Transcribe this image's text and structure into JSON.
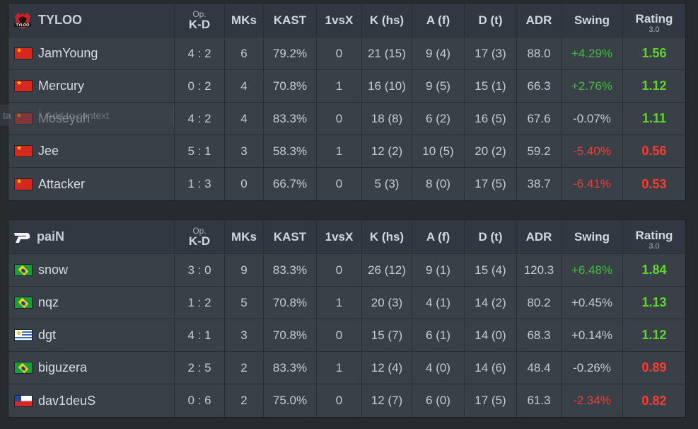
{
  "headers": {
    "kd_op": "Op.",
    "kd_main": "K-D",
    "mks": "MKs",
    "kast": "KAST",
    "vsx": "1vsX",
    "khs": "K (hs)",
    "af": "A (f)",
    "dt": "D (t)",
    "adr": "ADR",
    "swing": "Swing",
    "rating_main": "Rating",
    "rating_ver": "3.0"
  },
  "overlay": {
    "short": "ta",
    "label": "Add to context"
  },
  "colors": {
    "positive_swing": "#3fbd3f",
    "negative_swing": "#e8403a",
    "good_rating": "#5ed62a",
    "bad_rating": "#ff3b30"
  },
  "teams": [
    {
      "name": "TYLOO",
      "logo_icon": "tyloo-logo-icon",
      "players": [
        {
          "name": "JamYoung",
          "flag": "china-flag-icon",
          "kd": "4 : 2",
          "mks": "6",
          "kast": "79.2%",
          "vsx": "0",
          "khs": "21 (15)",
          "af": "9 (4)",
          "dt": "17 (3)",
          "adr": "88.0",
          "swing": "+4.29%",
          "rating": "1.56"
        },
        {
          "name": "Mercury",
          "flag": "china-flag-icon",
          "kd": "0 : 2",
          "mks": "4",
          "kast": "70.8%",
          "vsx": "1",
          "khs": "16 (10)",
          "af": "9 (5)",
          "dt": "15 (1)",
          "adr": "66.3",
          "swing": "+2.76%",
          "rating": "1.12"
        },
        {
          "name": "Moseyuh",
          "flag": "china-flag-icon",
          "kd": "4 : 2",
          "mks": "4",
          "kast": "83.3%",
          "vsx": "0",
          "khs": "18 (8)",
          "af": "6 (2)",
          "dt": "16 (5)",
          "adr": "67.6",
          "swing": "-0.07%",
          "rating": "1.11"
        },
        {
          "name": "Jee",
          "flag": "china-flag-icon",
          "kd": "5 : 1",
          "mks": "3",
          "kast": "58.3%",
          "vsx": "1",
          "khs": "12 (2)",
          "af": "10 (5)",
          "dt": "20 (2)",
          "adr": "59.2",
          "swing": "-5.40%",
          "rating": "0.56"
        },
        {
          "name": "Attacker",
          "flag": "china-flag-icon",
          "kd": "1 : 3",
          "mks": "0",
          "kast": "66.7%",
          "vsx": "0",
          "khs": "5 (3)",
          "af": "8 (0)",
          "dt": "17 (5)",
          "adr": "38.7",
          "swing": "-6.41%",
          "rating": "0.53"
        }
      ]
    },
    {
      "name": "paiN",
      "logo_icon": "pain-logo-icon",
      "players": [
        {
          "name": "snow",
          "flag": "brazil-flag-icon",
          "kd": "3 : 0",
          "mks": "9",
          "kast": "83.3%",
          "vsx": "0",
          "khs": "26 (12)",
          "af": "9 (1)",
          "dt": "15 (4)",
          "adr": "120.3",
          "swing": "+6.48%",
          "rating": "1.84"
        },
        {
          "name": "nqz",
          "flag": "brazil-flag-icon",
          "kd": "1 : 2",
          "mks": "5",
          "kast": "70.8%",
          "vsx": "1",
          "khs": "20 (3)",
          "af": "4 (1)",
          "dt": "14 (2)",
          "adr": "80.2",
          "swing": "+0.45%",
          "rating": "1.13"
        },
        {
          "name": "dgt",
          "flag": "uruguay-flag-icon",
          "kd": "4 : 1",
          "mks": "3",
          "kast": "70.8%",
          "vsx": "0",
          "khs": "15 (7)",
          "af": "6 (1)",
          "dt": "14 (0)",
          "adr": "68.3",
          "swing": "+0.14%",
          "rating": "1.12"
        },
        {
          "name": "biguzera",
          "flag": "brazil-flag-icon",
          "kd": "2 : 5",
          "mks": "2",
          "kast": "83.3%",
          "vsx": "1",
          "khs": "12 (4)",
          "af": "4 (0)",
          "dt": "14 (6)",
          "adr": "48.4",
          "swing": "-0.26%",
          "rating": "0.89"
        },
        {
          "name": "dav1deuS",
          "flag": "chile-flag-icon",
          "kd": "0 : 6",
          "mks": "2",
          "kast": "75.0%",
          "vsx": "0",
          "khs": "12 (7)",
          "af": "6 (0)",
          "dt": "17 (5)",
          "adr": "61.3",
          "swing": "-2.34%",
          "rating": "0.82"
        }
      ]
    }
  ]
}
